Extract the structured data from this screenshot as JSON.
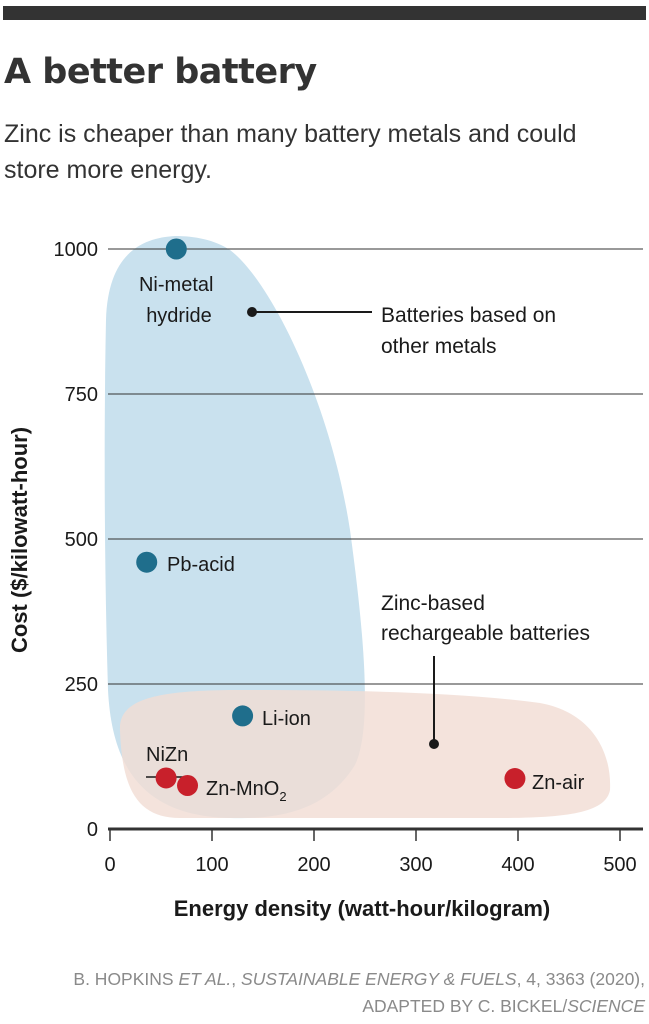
{
  "header": {
    "title": "A better battery",
    "subtitle": "Zinc is cheaper than many battery metals and could store more energy."
  },
  "chart_data": {
    "type": "scatter",
    "title": "A better battery",
    "subtitle": "Zinc is cheaper than many battery metals and could store more energy.",
    "xlabel": "Energy density (watt-hour/kilogram)",
    "ylabel": "Cost ($/kilowatt-hour)",
    "xlim": [
      0,
      520
    ],
    "ylim": [
      0,
      1000
    ],
    "x_ticks": [
      0,
      100,
      200,
      300,
      400,
      500
    ],
    "y_ticks": [
      0,
      250,
      500,
      750,
      1000
    ],
    "grid": "horizontal",
    "series": [
      {
        "name": "Batteries based on other metals",
        "color": "#1f6e8c",
        "region_color": "#c9e1ee",
        "points": [
          {
            "label": "Ni-metal hydride",
            "x": 65,
            "y": 1000
          },
          {
            "label": "Pb-acid",
            "x": 36,
            "y": 460
          },
          {
            "label": "Li-ion",
            "x": 130,
            "y": 195
          }
        ]
      },
      {
        "name": "Zinc-based rechargeable batteries",
        "color": "#c8202b",
        "region_color": "#f2ddd4",
        "points": [
          {
            "label": "NiZn",
            "x": 55,
            "y": 88
          },
          {
            "label": "Zn-MnO",
            "label_sub": "2",
            "x": 76,
            "y": 75
          },
          {
            "label": "Zn-air",
            "x": 397,
            "y": 87
          }
        ]
      }
    ],
    "annotations": [
      {
        "text_lines": [
          "Batteries based on",
          "other metals"
        ],
        "series": 0
      },
      {
        "text_lines": [
          "Zinc-based",
          "rechargeable batteries"
        ],
        "series": 1
      }
    ]
  },
  "credit": {
    "line1_a": "B. HOPKINS ",
    "line1_b": "ET AL.",
    "line1_c": ", ",
    "line1_d": "SUSTAINABLE ENERGY & FUELS",
    "line1_e": ", 4, 3363 (2020),",
    "line2_a": "ADAPTED BY C. BICKEL/",
    "line2_b": "SCIENCE"
  }
}
